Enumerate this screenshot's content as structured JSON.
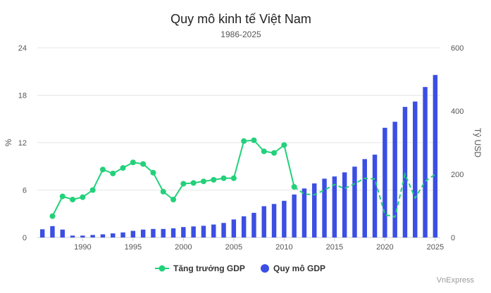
{
  "colors": {
    "growth": "#22d17a",
    "gdp": "#3b4fe4",
    "grid": "#e6e6e6",
    "text": "#222222"
  },
  "credit": "VnExpress",
  "chart_data": {
    "type": "bar",
    "title": "Quy mô kinh tế Việt Nam",
    "subtitle": "1986-2025",
    "xlabel": "",
    "x_range": [
      1985.5,
      2025.5
    ],
    "x_ticks": [
      1990,
      1995,
      2000,
      2005,
      2010,
      2015,
      2020,
      2025
    ],
    "left_axis": {
      "label": "%",
      "ticks": [
        0,
        6,
        12,
        18,
        24
      ],
      "ylim": [
        0,
        24
      ]
    },
    "right_axis": {
      "label": "Tỷ USD",
      "ticks": [
        0,
        200,
        400,
        600
      ],
      "ylim": [
        0,
        600
      ]
    },
    "grid": true,
    "legend_position": "bottom-center",
    "series": [
      {
        "name": "Tăng trưởng GDP",
        "type": "line",
        "axis": "left",
        "color": "#22d17a",
        "x": [
          1987,
          1988,
          1989,
          1990,
          1991,
          1992,
          1993,
          1994,
          1995,
          1996,
          1997,
          1998,
          1999,
          2000,
          2001,
          2002,
          2003,
          2004,
          2005,
          2006,
          2007,
          2008,
          2009,
          2010,
          2011,
          2012,
          2013,
          2014,
          2015,
          2016,
          2017,
          2018,
          2019,
          2020,
          2021,
          2022,
          2023,
          2024,
          2025
        ],
        "values": [
          2.7,
          5.2,
          4.8,
          5.1,
          6.0,
          8.6,
          8.1,
          8.8,
          9.5,
          9.3,
          8.2,
          5.8,
          4.8,
          6.8,
          6.9,
          7.1,
          7.3,
          7.5,
          7.5,
          12.2,
          12.3,
          10.9,
          10.7,
          11.7,
          6.4,
          5.5,
          5.4,
          6.0,
          6.7,
          6.2,
          6.8,
          7.5,
          7.4,
          2.9,
          2.6,
          8.0,
          5.0,
          7.1,
          8.0
        ]
      },
      {
        "name": "Quy mô GDP",
        "type": "bar",
        "axis": "right",
        "color": "#3b4fe4",
        "x": [
          1986,
          1987,
          1988,
          1989,
          1990,
          1991,
          1992,
          1993,
          1994,
          1995,
          1996,
          1997,
          1998,
          1999,
          2000,
          2001,
          2002,
          2003,
          2004,
          2005,
          2006,
          2007,
          2008,
          2009,
          2010,
          2011,
          2012,
          2013,
          2014,
          2015,
          2016,
          2017,
          2018,
          2019,
          2020,
          2021,
          2022,
          2023,
          2024,
          2025
        ],
        "values": [
          26,
          36,
          25,
          6,
          6,
          8,
          10,
          13,
          16,
          21,
          25,
          27,
          27,
          29,
          33,
          35,
          37,
          41,
          46,
          57,
          67,
          78,
          99,
          106,
          116,
          136,
          155,
          171,
          186,
          193,
          206,
          224,
          248,
          262,
          347,
          366,
          413,
          430,
          476,
          514
        ]
      }
    ]
  }
}
